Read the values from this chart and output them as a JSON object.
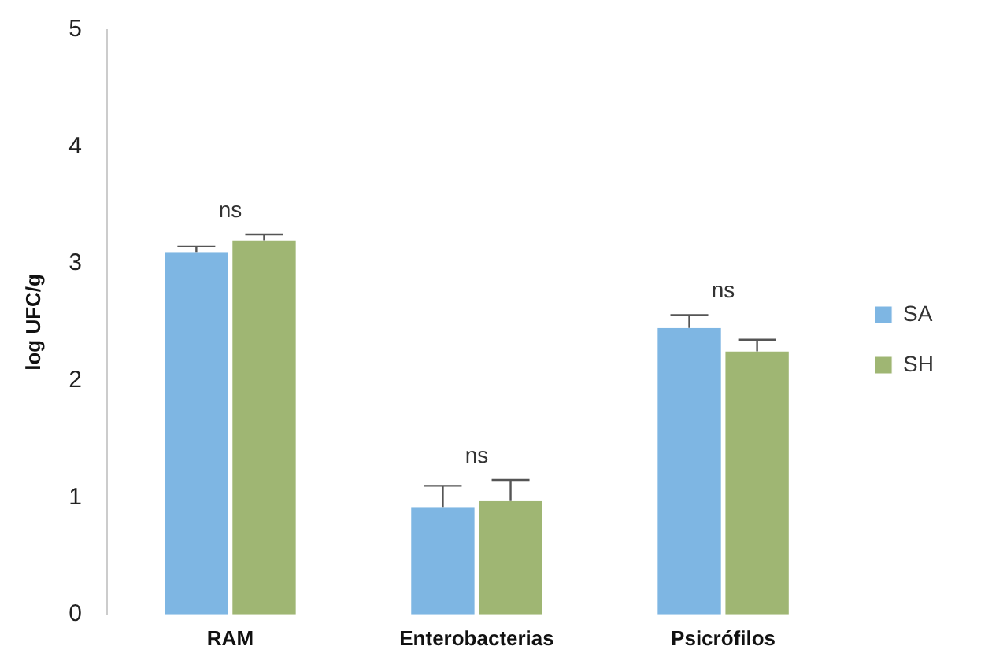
{
  "chart_data": {
    "type": "bar",
    "ylabel": "log UFC/g",
    "categories": [
      "RAM",
      "Enterobacterias",
      "Psicrófilos"
    ],
    "series": [
      {
        "name": "SA",
        "color": "#7eb6e3",
        "values": [
          3.1,
          0.92,
          2.45
        ],
        "errors": [
          [
            3.1,
            3.15
          ],
          [
            0.92,
            1.1
          ],
          [
            2.45,
            2.56
          ]
        ]
      },
      {
        "name": "SH",
        "color": "#9fb673",
        "values": [
          3.2,
          0.97,
          2.25
        ],
        "errors": [
          [
            3.2,
            3.25
          ],
          [
            0.97,
            1.15
          ],
          [
            2.25,
            2.35
          ]
        ]
      }
    ],
    "ylim": [
      0,
      5
    ],
    "yticks": [
      0,
      1,
      2,
      3,
      4,
      5
    ],
    "grid": false,
    "legend": "right",
    "annotations": [
      "ns",
      "ns",
      "ns"
    ]
  }
}
